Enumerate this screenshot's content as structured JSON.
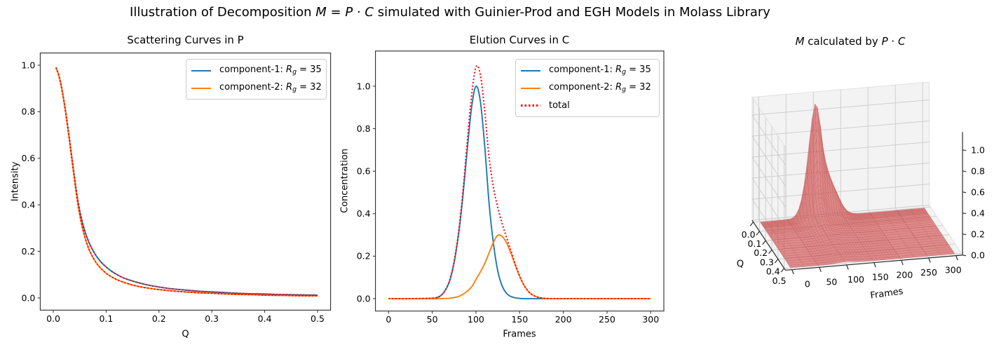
{
  "figure": {
    "title_runs": [
      {
        "t": "Illustration of Decomposition "
      },
      {
        "t": "M",
        "i": 1
      },
      {
        "t": " = "
      },
      {
        "t": "P",
        "i": 1
      },
      {
        "t": " · "
      },
      {
        "t": "C",
        "i": 1
      },
      {
        "t": " simulated with Guinier-Prod and EGH Models in Molass Library"
      }
    ],
    "background": "#ffffff"
  },
  "colors": {
    "component1": "#1f77b4",
    "component2": "#ff7f0e",
    "total": "#ff0000",
    "axis": "#2b2b2b",
    "text": "#000000",
    "pane3d": "#f3f3f3",
    "pane3d_edge": "#dedede",
    "grid3d": "#cfcfcf",
    "surface": "#cf4a4a"
  },
  "chart_data": [
    {
      "type": "line",
      "title": "Scattering Curves in P",
      "xlabel": "Q",
      "ylabel": "Intensity",
      "xlim": [
        0,
        0.5
      ],
      "ylim": [
        0,
        1.05
      ],
      "xticks": [
        0,
        0.1,
        0.2,
        0.3,
        0.4,
        0.5
      ],
      "xtick_labels": [
        "0.0",
        "0.1",
        "0.2",
        "0.3",
        "0.4",
        "0.5"
      ],
      "yticks": [
        0,
        0.2,
        0.4,
        0.6,
        0.8,
        1.0
      ],
      "ytick_labels": [
        "0.0",
        "0.2",
        "0.4",
        "0.6",
        "0.8",
        "1.0"
      ],
      "legend_position": "upper right",
      "series": [
        {
          "name": "component-1",
          "label_runs": [
            {
              "t": "component-1: "
            },
            {
              "t": "R",
              "i": 1
            },
            {
              "t": "g",
              "i": 1,
              "sub": 1
            },
            {
              "t": " = 35"
            }
          ],
          "color_key": "component1",
          "style": "solid",
          "dotted_red_overlay": true,
          "x": [
            0.005,
            0.01,
            0.015,
            0.02,
            0.025,
            0.03,
            0.035,
            0.04,
            0.045,
            0.05,
            0.055,
            0.06,
            0.065,
            0.07,
            0.08,
            0.09,
            0.1,
            0.11,
            0.12,
            0.13,
            0.14,
            0.16,
            0.18,
            0.2,
            0.225,
            0.25,
            0.275,
            0.3,
            0.325,
            0.35,
            0.375,
            0.4,
            0.425,
            0.45,
            0.475,
            0.5
          ],
          "y": [
            0.99,
            0.96,
            0.912,
            0.849,
            0.775,
            0.692,
            0.606,
            0.52,
            0.439,
            0.375,
            0.325,
            0.285,
            0.253,
            0.226,
            0.185,
            0.155,
            0.133,
            0.115,
            0.101,
            0.089,
            0.08,
            0.066,
            0.055,
            0.047,
            0.039,
            0.034,
            0.029,
            0.026,
            0.023,
            0.02,
            0.018,
            0.017,
            0.015,
            0.014,
            0.013,
            0.012
          ]
        },
        {
          "name": "component-2",
          "label_runs": [
            {
              "t": "component-2: "
            },
            {
              "t": "R",
              "i": 1
            },
            {
              "t": "g",
              "i": 1,
              "sub": 1
            },
            {
              "t": " = 32"
            }
          ],
          "color_key": "component2",
          "style": "solid",
          "dotted_red_overlay": true,
          "x": [
            0.005,
            0.01,
            0.015,
            0.02,
            0.025,
            0.03,
            0.035,
            0.04,
            0.045,
            0.05,
            0.055,
            0.06,
            0.065,
            0.07,
            0.08,
            0.09,
            0.1,
            0.11,
            0.12,
            0.13,
            0.14,
            0.16,
            0.18,
            0.2,
            0.225,
            0.25,
            0.275,
            0.3,
            0.325,
            0.35,
            0.375,
            0.4,
            0.425,
            0.45,
            0.475,
            0.5
          ],
          "y": [
            0.99,
            0.959,
            0.91,
            0.846,
            0.77,
            0.686,
            0.598,
            0.51,
            0.427,
            0.358,
            0.303,
            0.259,
            0.224,
            0.196,
            0.155,
            0.127,
            0.106,
            0.091,
            0.079,
            0.07,
            0.062,
            0.05,
            0.042,
            0.036,
            0.03,
            0.026,
            0.022,
            0.02,
            0.017,
            0.015,
            0.014,
            0.012,
            0.011,
            0.01,
            0.009,
            0.009
          ]
        }
      ]
    },
    {
      "type": "line",
      "title": "Elution Curves in C",
      "xlabel": "Frames",
      "ylabel": "Concentration",
      "xlim": [
        0,
        300
      ],
      "ylim": [
        0,
        1.11
      ],
      "xticks": [
        0,
        50,
        100,
        150,
        200,
        250,
        300
      ],
      "xtick_labels": [
        "0",
        "50",
        "100",
        "150",
        "200",
        "250",
        "300"
      ],
      "yticks": [
        0,
        0.2,
        0.4,
        0.6,
        0.8,
        1.0
      ],
      "ytick_labels": [
        "0.0",
        "0.2",
        "0.4",
        "0.6",
        "0.8",
        "1.0"
      ],
      "legend_position": "upper right",
      "series": [
        {
          "name": "component-1",
          "label_runs": [
            {
              "t": "component-1: "
            },
            {
              "t": "R",
              "i": 1
            },
            {
              "t": "g",
              "i": 1,
              "sub": 1
            },
            {
              "t": " = 35"
            }
          ],
          "color_key": "component1",
          "style": "solid",
          "x": [
            0,
            25,
            50,
            55,
            60,
            65,
            70,
            75,
            80,
            85,
            90,
            95,
            100,
            105,
            110,
            115,
            120,
            125,
            130,
            135,
            140,
            145,
            150,
            155,
            160,
            165,
            170,
            175,
            180,
            185,
            190,
            195,
            200,
            225,
            250,
            275,
            300
          ],
          "y": [
            0,
            0,
            0.002,
            0.005,
            0.015,
            0.04,
            0.085,
            0.17,
            0.3,
            0.48,
            0.7,
            0.9,
            1.0,
            0.93,
            0.72,
            0.45,
            0.26,
            0.13,
            0.06,
            0.025,
            0.01,
            0.004,
            0.001,
            0,
            0,
            0,
            0,
            0,
            0,
            0,
            0,
            0,
            0,
            0,
            0,
            0,
            0
          ]
        },
        {
          "name": "component-2",
          "label_runs": [
            {
              "t": "component-2: "
            },
            {
              "t": "R",
              "i": 1
            },
            {
              "t": "g",
              "i": 1,
              "sub": 1
            },
            {
              "t": " = 32"
            }
          ],
          "color_key": "component2",
          "style": "solid",
          "x": [
            0,
            25,
            50,
            55,
            60,
            65,
            70,
            75,
            80,
            85,
            90,
            95,
            100,
            105,
            110,
            115,
            120,
            125,
            130,
            135,
            140,
            145,
            150,
            155,
            160,
            165,
            170,
            175,
            180,
            185,
            190,
            195,
            200,
            225,
            250,
            275,
            300
          ],
          "y": [
            0,
            0,
            0,
            0,
            0,
            0.001,
            0.002,
            0.005,
            0.01,
            0.02,
            0.035,
            0.055,
            0.09,
            0.125,
            0.165,
            0.215,
            0.265,
            0.298,
            0.293,
            0.263,
            0.215,
            0.158,
            0.105,
            0.063,
            0.034,
            0.017,
            0.008,
            0.003,
            0.001,
            0,
            0,
            0,
            0,
            0,
            0,
            0,
            0
          ]
        },
        {
          "name": "total",
          "label_runs": [
            {
              "t": "total"
            }
          ],
          "color_key": "total",
          "style": "dotted",
          "x": [
            0,
            25,
            50,
            55,
            60,
            65,
            70,
            75,
            80,
            85,
            90,
            95,
            100,
            105,
            110,
            115,
            120,
            125,
            130,
            135,
            140,
            145,
            150,
            155,
            160,
            165,
            170,
            175,
            180,
            185,
            190,
            195,
            200,
            225,
            250,
            275,
            300
          ],
          "y": [
            0,
            0,
            0.002,
            0.005,
            0.015,
            0.041,
            0.087,
            0.175,
            0.31,
            0.5,
            0.735,
            0.955,
            1.09,
            1.055,
            0.885,
            0.665,
            0.525,
            0.428,
            0.353,
            0.288,
            0.225,
            0.162,
            0.106,
            0.063,
            0.034,
            0.017,
            0.008,
            0.003,
            0.001,
            0,
            0,
            0,
            0,
            0,
            0,
            0,
            0
          ]
        }
      ]
    },
    {
      "type": "surface3d",
      "title_runs": [
        {
          "t": "M",
          "i": 1
        },
        {
          "t": " calculated by "
        },
        {
          "t": "P",
          "i": 1
        },
        {
          "t": " · "
        },
        {
          "t": "C",
          "i": 1
        }
      ],
      "xlabel": "Frames",
      "ylabel": "Q",
      "q_tick_values": [
        0,
        0.1,
        0.2,
        0.3,
        0.4,
        0.5
      ],
      "q_tick_labels": [
        "0.0",
        "0.1",
        "0.2",
        "0.3",
        "0.4",
        "0.5"
      ],
      "frame_tick_values": [
        0,
        50,
        100,
        150,
        200,
        250,
        300
      ],
      "frame_tick_labels": [
        "0",
        "50",
        "100",
        "150",
        "200",
        "250",
        "300"
      ],
      "z_tick_values": [
        0,
        0.2,
        0.4,
        0.6,
        0.8,
        1.0
      ],
      "z_tick_labels": [
        "0.0",
        "0.2",
        "0.4",
        "0.6",
        "0.8",
        "1.0"
      ],
      "q_range": [
        0,
        0.5
      ],
      "frame_range": [
        0,
        300
      ],
      "z_range": [
        0,
        1.1
      ],
      "surface_description": "M(Q,frame) = P1(Q)*C1(frame) + P2(Q)*C2(frame), computed from the series of the two 2D charts",
      "surface_color_name": "red (semi-transparent)"
    }
  ]
}
